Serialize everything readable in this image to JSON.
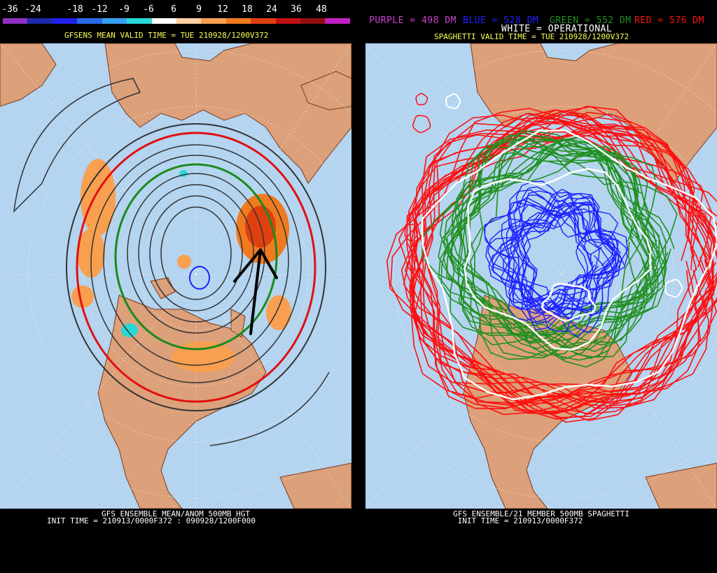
{
  "left": {
    "scale_labels": [
      "-36",
      "-24",
      "-18",
      "-12",
      "-9",
      "-6",
      "6",
      "9",
      "12",
      "18",
      "24",
      "36",
      "48"
    ],
    "scale_colors": [
      "#9030c0",
      "#1a2aa8",
      "#2020f0",
      "#2a6ae8",
      "#38a0f0",
      "#28d8d8",
      "#ffffff",
      "#ffd0a0",
      "#f8a050",
      "#f07a20",
      "#e04010",
      "#c01010",
      "#901010",
      "#c020c0"
    ],
    "title": "GFSENS MEAN VALID TIME = TUE 210928/1200V372",
    "footer_line1": "GFS ENSEMBLE MEAN/ANOM 500MB HGT",
    "footer_line2": "INIT TIME = 210913/0000F372 : 090928/1200F000"
  },
  "right": {
    "legend_purple": "PURPLE = 498 DM",
    "legend_blue": "BLUE = 528 DM",
    "legend_green": "GREEN = 552 DM",
    "legend_red": "RED = 576 DM",
    "legend_white": "WHITE = OPERATIONAL",
    "title": "SPAGHETTI VALID TIME = TUE 210928/1200V372",
    "footer_line1": "GFS ENSEMBLE/21 MEMBER 500MB SPAGHETTI",
    "footer_line2": "INIT TIME = 210913/0000F372",
    "colors": {
      "purple": "#d040d0",
      "blue": "#2020ff",
      "green": "#209020",
      "red": "#ff1010",
      "white": "#ffffff",
      "ocean": "#b4d4f0",
      "land": "#dca07a"
    }
  }
}
